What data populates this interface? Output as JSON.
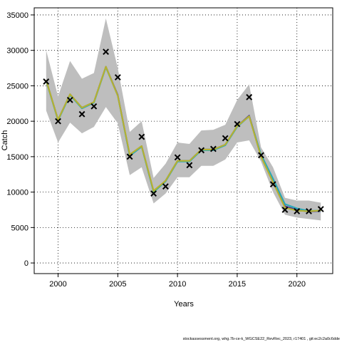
{
  "chart_data": {
    "type": "line",
    "xlabel": "Years",
    "ylabel": "Catch",
    "xlim": [
      1998,
      2023
    ],
    "ylim": [
      -1500,
      36000
    ],
    "x_ticks": [
      2000,
      2005,
      2010,
      2015,
      2020
    ],
    "x_tick_labels": [
      "2000",
      "2005",
      "2010",
      "2015",
      "2020"
    ],
    "y_ticks": [
      0,
      5000,
      10000,
      15000,
      20000,
      25000,
      30000,
      35000
    ],
    "y_tick_labels": [
      "0",
      "5000",
      "10000",
      "15000",
      "20000",
      "25000",
      "30000",
      "35000"
    ],
    "grid": true,
    "footer": "stockassessment.org, whg.7b-ce-k_WGCSE22_RevRec_2023, r17401 , git:ec2c2a0c6dde",
    "x": [
      1999,
      2000,
      2001,
      2002,
      2003,
      2004,
      2005,
      2006,
      2007,
      2008,
      2009,
      2010,
      2011,
      2012,
      2013,
      2014,
      2015,
      2016,
      2017,
      2018,
      2019,
      2020,
      2021,
      2022
    ],
    "confidence_band": {
      "color": "#bebebe",
      "upper": [
        30000,
        23500,
        28500,
        26000,
        26800,
        34500,
        27500,
        18500,
        20000,
        12000,
        14000,
        17000,
        16800,
        18700,
        18800,
        19500,
        23000,
        25200,
        16300,
        13500,
        9200,
        8800,
        8800,
        8500
      ],
      "lower": [
        21500,
        17000,
        19800,
        18300,
        19200,
        22000,
        19700,
        12400,
        13500,
        8400,
        9800,
        12100,
        12100,
        13700,
        13700,
        14600,
        17000,
        17300,
        14300,
        10000,
        6800,
        6400,
        6200,
        6000
      ]
    },
    "series": [
      {
        "color": "#3f7fcf",
        "values": [
          25800,
          20200,
          23700,
          21900,
          22700,
          27700,
          23600,
          15200,
          16500,
          10100,
          11600,
          14400,
          14400,
          16000,
          16000,
          16700,
          19300,
          20700,
          15000,
          11500,
          7900,
          7400,
          7300,
          7300
        ]
      },
      {
        "color": "#4a2f8e",
        "values": [
          25800,
          20200,
          23800,
          21900,
          22700,
          27700,
          23700,
          15200,
          16500,
          10100,
          11600,
          14400,
          14400,
          16000,
          16000,
          16700,
          19300,
          20800,
          15200,
          11600,
          8000,
          7500,
          7250,
          7350
        ]
      },
      {
        "color": "#29a8b8",
        "values": [
          25700,
          20100,
          23700,
          21800,
          22600,
          27600,
          23600,
          15100,
          16400,
          10000,
          11500,
          14300,
          14300,
          15900,
          15900,
          16600,
          19200,
          20700,
          15300,
          11900,
          8300,
          7700,
          7350,
          7400
        ]
      },
      {
        "color": "#7ac142",
        "values": [
          25800,
          20200,
          23800,
          21900,
          22700,
          27700,
          23600,
          15300,
          16500,
          10100,
          11600,
          14400,
          14400,
          16000,
          16000,
          16700,
          19300,
          20700,
          15000,
          11400,
          7800,
          7400,
          7300,
          7400
        ]
      },
      {
        "color": "#b8b030",
        "values": [
          25800,
          20200,
          23800,
          21900,
          22700,
          27700,
          23600,
          15300,
          16500,
          10200,
          11600,
          14400,
          14400,
          16000,
          16000,
          16700,
          19300,
          20700,
          15000,
          11400,
          7800,
          7400,
          7300,
          7400
        ]
      }
    ],
    "observed": {
      "marker": "x",
      "x": [
        1999,
        2000,
        2001,
        2002,
        2003,
        2004,
        2005,
        2006,
        2007,
        2008,
        2009,
        2010,
        2011,
        2012,
        2013,
        2014,
        2015,
        2016,
        2017,
        2018,
        2019,
        2020,
        2021,
        2022
      ],
      "y": [
        25600,
        20000,
        23000,
        21000,
        22100,
        29800,
        26200,
        15000,
        17800,
        9800,
        10800,
        14900,
        13800,
        15900,
        16100,
        17600,
        19600,
        23400,
        15200,
        11100,
        7500,
        7300,
        7300,
        7600
      ]
    }
  }
}
